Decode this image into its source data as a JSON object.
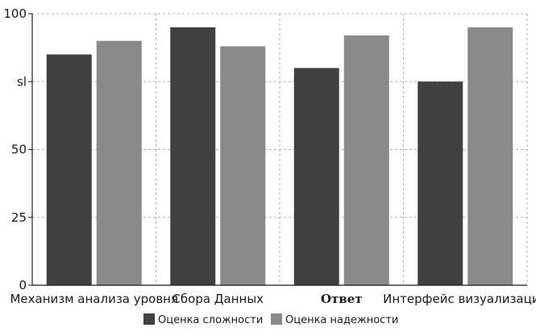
{
  "chart_data": {
    "type": "bar",
    "categories": [
      "Механизм анализа уровня",
      "Сбора Данных",
      "Ответ",
      "Интерфейс визуализации"
    ],
    "series": [
      {
        "name": "Оценка сложности",
        "color": "#404040",
        "values": [
          85,
          95,
          80,
          75
        ]
      },
      {
        "name": "Оценка надежности",
        "color": "#8a8a8a",
        "values": [
          90,
          88,
          92,
          95
        ]
      }
    ],
    "y_ticks": [
      {
        "value": 0,
        "label": "0"
      },
      {
        "value": 25,
        "label": "25"
      },
      {
        "value": 50,
        "label": "50"
      },
      {
        "value": 75,
        "label": "sl"
      },
      {
        "value": 100,
        "label": "100"
      }
    ],
    "ylim": [
      0,
      100
    ],
    "grid": true,
    "legend_position": "bottom"
  }
}
